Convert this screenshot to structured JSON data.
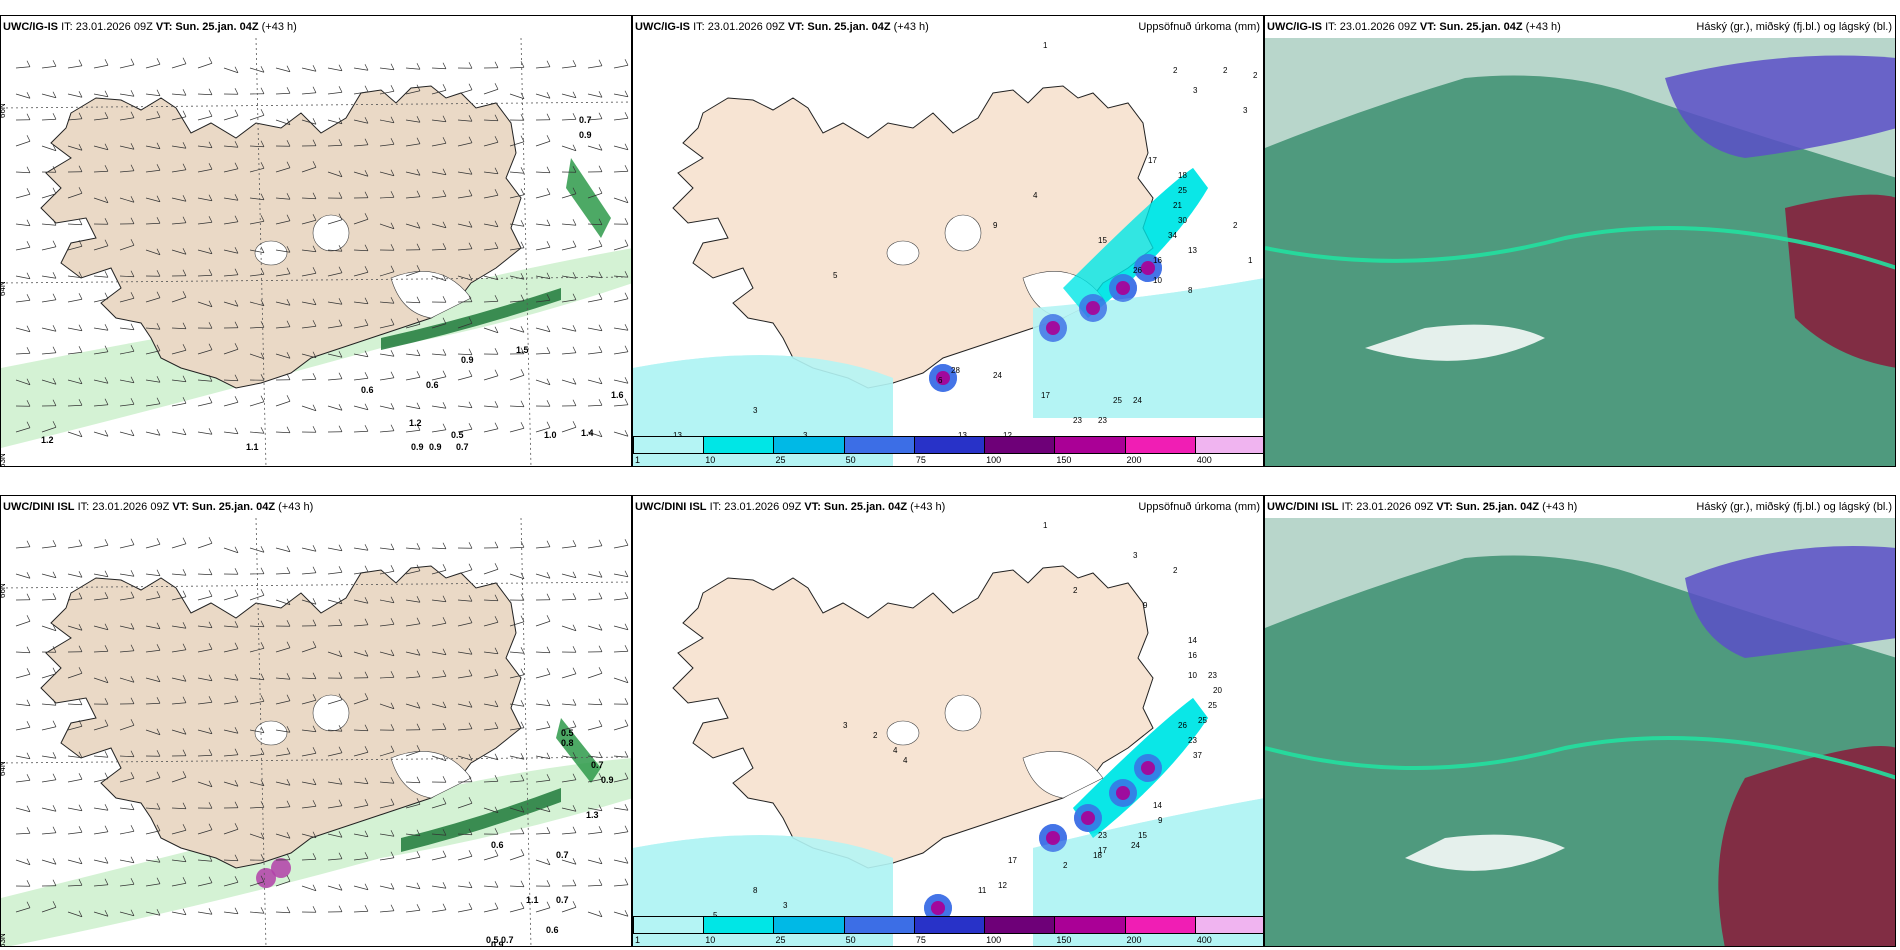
{
  "panels": [
    {
      "model": "UWC/IG-IS",
      "it": "IT: 23.01.2026 09Z",
      "vt_label": "VT:",
      "vt": "Sun. 25.jan. 04Z",
      "lead": "(+43 h)",
      "right": ""
    },
    {
      "model": "UWC/IG-IS",
      "it": "IT: 23.01.2026 09Z",
      "vt_label": "VT:",
      "vt": "Sun. 25.jan. 04Z",
      "lead": "(+43 h)",
      "right": "Uppsöfnuð úrkoma (mm)"
    },
    {
      "model": "UWC/IG-IS",
      "it": "IT: 23.01.2026 09Z",
      "vt_label": "VT:",
      "vt": "Sun. 25.jan. 04Z",
      "lead": "(+43 h)",
      "right": "Háský (gr.), miðský (fj.bl.) og lágský (bl.)"
    },
    {
      "model": "UWC/DINI ISL",
      "it": "IT: 23.01.2026 09Z",
      "vt_label": "VT:",
      "vt": "Sun. 25.jan. 04Z",
      "lead": "(+43 h)",
      "right": ""
    },
    {
      "model": "UWC/DINI ISL",
      "it": "IT: 23.01.2026 09Z",
      "vt_label": "VT:",
      "vt": "Sun. 25.jan. 04Z",
      "lead": "(+43 h)",
      "right": "Uppsöfnuð úrkoma (mm)"
    },
    {
      "model": "UWC/DINI ISL",
      "it": "IT: 23.01.2026 09Z",
      "vt_label": "VT:",
      "vt": "Sun. 25.jan. 04Z",
      "lead": "(+43 h)",
      "right": "Háský (gr.), miðský (fj.bl.) og lágský (bl.)"
    }
  ],
  "axes": {
    "lat_top": "66N",
    "lat_mid": "64N",
    "lat_low": "63N",
    "lon_w20": "20W",
    "lon_w15": "15W"
  },
  "colorbar": {
    "labels": [
      "1",
      "10",
      "25",
      "50",
      "75",
      "100",
      "150",
      "200",
      "400"
    ],
    "colors": [
      "#b4f4f4",
      "#00e6e6",
      "#00b9e6",
      "#3c6ee6",
      "#2832c8",
      "#6e0078",
      "#aa0096",
      "#f01eb4",
      "#f0b4f0"
    ]
  },
  "wind_values_top": [
    "0.7",
    "0.9",
    "1.2",
    "1.1",
    "0.9",
    "0.5",
    "0.7",
    "0.9",
    "1.0",
    "1.4",
    "1.6",
    "0.6",
    "0.9",
    "1.5",
    "1.2",
    "0.6"
  ],
  "wind_values_bottom": [
    "0.5",
    "0.8",
    "0.7",
    "0.9",
    "1.3",
    "0.7",
    "0.6",
    "1.1",
    "0.7",
    "0.5",
    "0.7",
    "0.9",
    "0.6"
  ],
  "precip_values_top": [
    "1",
    "2",
    "2",
    "2",
    "3",
    "3",
    "17",
    "18",
    "25",
    "21",
    "30",
    "34",
    "13",
    "16",
    "26",
    "10",
    "8",
    "15",
    "9",
    "4",
    "2",
    "1",
    "24",
    "6",
    "28",
    "17",
    "23",
    "23",
    "25",
    "24",
    "13",
    "12",
    "13",
    "3",
    "3",
    "5"
  ],
  "precip_values_bottom": [
    "1",
    "3",
    "2",
    "9",
    "14",
    "16",
    "10",
    "23",
    "20",
    "25",
    "25",
    "26",
    "23",
    "37",
    "2",
    "14",
    "9",
    "17",
    "15",
    "2",
    "24",
    "23",
    "18",
    "17",
    "12",
    "11",
    "3",
    "8",
    "5",
    "6",
    "6",
    "3",
    "2",
    "4",
    "4"
  ]
}
